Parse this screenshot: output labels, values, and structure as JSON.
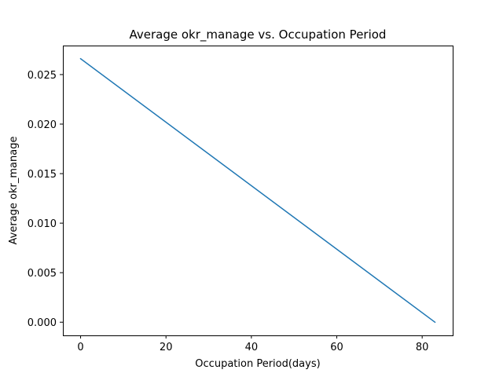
{
  "chart_data": {
    "type": "line",
    "title": "Average okr_manage vs. Occupation Period",
    "xlabel": "Occupation Period(days)",
    "ylabel": "Average okr_manage",
    "xlim": [
      -4.15,
      87.15
    ],
    "ylim": [
      -0.00133,
      0.02793
    ],
    "x_ticks": [
      0,
      20,
      40,
      60,
      80
    ],
    "x_tick_labels": [
      "0",
      "20",
      "40",
      "60",
      "80"
    ],
    "y_ticks": [
      0.0,
      0.005,
      0.01,
      0.015,
      0.02,
      0.025
    ],
    "y_tick_labels": [
      "0.000",
      "0.005",
      "0.010",
      "0.015",
      "0.020",
      "0.025"
    ],
    "grid": false,
    "series": [
      {
        "x": [
          0,
          83
        ],
        "y": [
          0.0266,
          0.0
        ],
        "color": "#1f77b4"
      }
    ]
  }
}
